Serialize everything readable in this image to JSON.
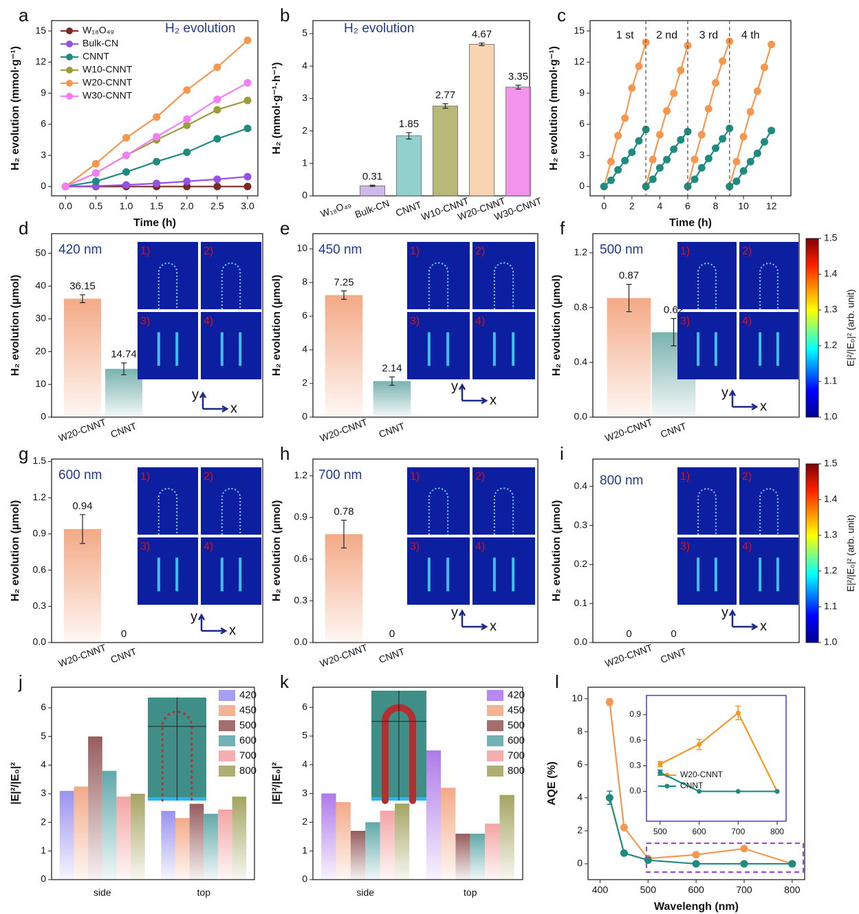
{
  "chart_data": [
    {
      "label": "a",
      "type": "line",
      "title": "H₂ evolution",
      "x": [
        0,
        0.5,
        1,
        1.5,
        2,
        2.5,
        3
      ],
      "series": [
        {
          "name": "W₁₈O₄₉",
          "color": "#7a2a25",
          "values": [
            0,
            0,
            0,
            0,
            0,
            0,
            0
          ]
        },
        {
          "name": "Bulk-CN",
          "color": "#9550e6",
          "values": [
            0,
            0.05,
            0.15,
            0.3,
            0.5,
            0.7,
            0.95
          ]
        },
        {
          "name": "CNNT",
          "color": "#1e8a80",
          "values": [
            0,
            0.5,
            1.4,
            2.4,
            3.3,
            4.6,
            5.6
          ]
        },
        {
          "name": "W10-CNNT",
          "color": "#9c9c3c",
          "values": [
            0,
            1.3,
            3.0,
            4.5,
            5.9,
            7.4,
            8.3
          ]
        },
        {
          "name": "W20-CNNT",
          "color": "#f5974f",
          "values": [
            0,
            2.2,
            4.7,
            6.7,
            9.3,
            11.5,
            14.1
          ]
        },
        {
          "name": "W30-CNNT",
          "color": "#f47cf4",
          "values": [
            0,
            1.3,
            3.0,
            4.8,
            6.5,
            8.4,
            10.0
          ]
        }
      ],
      "xlim": [
        -0.23,
        3.17
      ],
      "xticks": [
        {
          "value": 0,
          "label": "0.0"
        },
        0.5,
        {
          "value": 1,
          "label": "1.0"
        },
        1.5,
        {
          "value": 2,
          "label": "2.0"
        },
        2.5,
        {
          "value": 3,
          "label": "3.0"
        }
      ],
      "ylim": [
        -0.9,
        16
      ],
      "yticks": [
        0,
        3,
        6,
        9,
        12,
        15
      ],
      "xlabel": "Time (h)",
      "ylabel": "H₂ evolution (mmol·g⁻¹)",
      "legend": "upper left"
    },
    {
      "label": "b",
      "type": "bar",
      "title": "H₂ evolution",
      "categories": [
        "W₁₈O₄₉",
        "Bulk-CN",
        "CNNT",
        "W10-CNNT",
        "W20-CNNT",
        "W30-CNNT"
      ],
      "values": [
        0,
        0.31,
        1.85,
        2.77,
        4.67,
        3.35
      ],
      "errors": [
        0,
        0.02,
        0.1,
        0.07,
        0.04,
        0.06
      ],
      "value_labels": [
        null,
        "0.31",
        "1.85",
        "2.77",
        "4.67",
        "3.35"
      ],
      "colors": [
        "#b48ad8",
        "#c3a6e6",
        "#76c4c0",
        "#a6a656",
        "#f6c9a0",
        "#f07ae8"
      ],
      "ylim": [
        0,
        5.4
      ],
      "yticks": [
        0,
        1,
        2,
        3,
        4,
        5
      ],
      "ylabel": "H₂ (mmol·g⁻¹·h⁻¹)"
    },
    {
      "label": "c",
      "type": "line",
      "x": [
        0,
        0.5,
        1,
        1.5,
        2,
        2.5,
        3,
        3,
        3.5,
        4,
        4.5,
        5,
        5.5,
        6,
        6,
        6.5,
        7,
        7.5,
        8,
        8.5,
        9,
        9,
        9.5,
        10,
        10.5,
        11,
        11.5,
        12
      ],
      "series": [
        {
          "color": "#f5974f",
          "values": [
            0,
            2.4,
            4.9,
            6.6,
            9.5,
            11.6,
            13.9,
            0,
            2.6,
            5.0,
            7.3,
            9.0,
            11.2,
            13.6,
            0,
            2.6,
            5.0,
            7.5,
            10.0,
            12.1,
            14.0,
            0,
            2.4,
            4.8,
            7.2,
            9.2,
            11.5,
            13.7
          ]
        },
        {
          "color": "#1e8a80",
          "values": [
            0,
            0.6,
            1.6,
            2.5,
            3.3,
            4.4,
            5.5,
            0,
            0.7,
            1.8,
            2.6,
            3.6,
            4.5,
            5.3,
            0,
            0.7,
            1.8,
            2.7,
            3.7,
            4.6,
            5.6,
            0,
            0.5,
            1.5,
            2.4,
            3.2,
            4.3,
            5.4
          ]
        }
      ],
      "cycle_labels": [
        "1 st",
        "2 nd",
        "3 rd",
        "4 th"
      ],
      "vlines": [
        3,
        6,
        9
      ],
      "xlim": [
        -1,
        13.4
      ],
      "xticks": [
        0,
        2,
        4,
        6,
        8,
        10,
        12
      ],
      "ylim": [
        -0.9,
        16
      ],
      "yticks": [
        0,
        3,
        6,
        9,
        12,
        15
      ],
      "xlabel": "Time (h)",
      "ylabel": "H₂ evolution (mmol·g⁻¹)"
    },
    {
      "label": "d",
      "type": "bar",
      "title": "420 nm",
      "categories": [
        "W20-CNNT",
        "CNNT"
      ],
      "values": [
        36.15,
        14.74
      ],
      "errors": [
        1.2,
        1.8
      ],
      "colors": [
        "#f2a078",
        "#6aaaa5"
      ],
      "fade": true,
      "ylim": [
        0,
        56
      ],
      "yticks": [
        0,
        10,
        20,
        30,
        40,
        50
      ],
      "ylabel": "H₂ evolution (μmol)",
      "inset_labels": [
        "1)",
        "2)",
        "3)",
        "4)"
      ],
      "axis_labels": [
        "y",
        "x"
      ]
    },
    {
      "label": "e",
      "type": "bar",
      "title": "450 nm",
      "categories": [
        "W20-CNNT",
        "CNNT"
      ],
      "values": [
        7.25,
        2.14
      ],
      "errors": [
        0.25,
        0.25
      ],
      "colors": [
        "#f2a078",
        "#6aaaa5"
      ],
      "fade": true,
      "ylim": [
        0,
        10.9
      ],
      "yticks": [
        0,
        2,
        4,
        6,
        8,
        10
      ],
      "ylabel": "H₂ evolution (μmol)",
      "inset_labels": [
        "1)",
        "2)",
        "3)",
        "4)"
      ],
      "axis_labels": [
        "y",
        "x"
      ]
    },
    {
      "label": "f",
      "type": "bar",
      "title": "500 nm",
      "categories": [
        "W20-CNNT",
        "CNNT"
      ],
      "values": [
        0.87,
        0.62
      ],
      "errors": [
        0.1,
        0.1
      ],
      "colors": [
        "#f2a078",
        "#6aaaa5"
      ],
      "fade": true,
      "ylim": [
        0,
        1.34
      ],
      "yticks": [
        {
          "value": 0,
          "label": "0.0"
        },
        0.4,
        0.8,
        1.2
      ],
      "ylabel": "H₂ evolution (μmol)",
      "inset_labels": [
        "1)",
        "2)",
        "3)",
        "4)"
      ],
      "axis_labels": [
        "y",
        "x"
      ],
      "colorbar": {
        "clim": [
          1,
          1.5
        ],
        "ticks": [
          {
            "value": 1,
            "label": "1.0"
          },
          1.1,
          1.2,
          1.3,
          1.4,
          1.5
        ],
        "label": "E|²/|E₀|² (arb. unit)"
      }
    },
    {
      "label": "g",
      "type": "bar",
      "title": "600 nm",
      "categories": [
        "W20-CNNT",
        "CNNT"
      ],
      "values": [
        0.94,
        0
      ],
      "errors": [
        0.12,
        0
      ],
      "colors": [
        "#f2a078",
        "#6aaaa5"
      ],
      "fade": true,
      "ylim": [
        0,
        1.52
      ],
      "yticks": [
        {
          "value": 0,
          "label": "0.0"
        },
        0.3,
        0.6,
        0.9,
        1.2,
        1.5
      ],
      "ylabel": "H₂ evolution (μmol)",
      "inset_labels": [
        "1)",
        "2)",
        "3)",
        "4)"
      ],
      "axis_labels": [
        "y",
        "x"
      ]
    },
    {
      "label": "h",
      "type": "bar",
      "title": "700 nm",
      "categories": [
        "W20-CNNT",
        "CNNT"
      ],
      "values": [
        0.78,
        0
      ],
      "errors": [
        0.1,
        0
      ],
      "colors": [
        "#f2a078",
        "#6aaaa5"
      ],
      "fade": true,
      "ylim": [
        0,
        1.32
      ],
      "yticks": [
        {
          "value": 0,
          "label": "0.0"
        },
        0.3,
        0.6,
        0.9,
        1.2
      ],
      "ylabel": "H₂ evolution (μmol)",
      "inset_labels": [
        "1)",
        "2)",
        "3)",
        "4)"
      ],
      "axis_labels": [
        "y",
        "x"
      ]
    },
    {
      "label": "i",
      "type": "bar",
      "title": "800 nm",
      "categories": [
        "W20-CNNT",
        "CNNT"
      ],
      "values": [
        0,
        0
      ],
      "colors": [
        "#f2a078",
        "#6aaaa5"
      ],
      "fade": true,
      "ylim": [
        0,
        0.47
      ],
      "yticks": [
        {
          "value": 0,
          "label": "0.0"
        },
        0.1,
        0.2,
        0.3,
        0.4
      ],
      "ylabel": "H₂ evolution (μmol)",
      "inset_labels": [
        "1)",
        "2)",
        "3)",
        "4)"
      ],
      "axis_labels": [
        "y",
        "x"
      ],
      "colorbar": {
        "clim": [
          1,
          1.5
        ],
        "ticks": [
          {
            "value": 1,
            "label": "1.0"
          },
          1.1,
          1.2,
          1.3,
          1.4,
          1.5
        ],
        "label": "E|²/|E₀|² (arb. unit)"
      }
    },
    {
      "label": "j",
      "type": "bar",
      "categories": [
        "side",
        "top"
      ],
      "fade": true,
      "series": [
        {
          "name": "420",
          "color": "#8f86ee",
          "values": [
            3.1,
            2.4
          ]
        },
        {
          "name": "450",
          "color": "#f2a07a",
          "values": [
            3.25,
            2.15
          ]
        },
        {
          "name": "500",
          "color": "#8a4a4a",
          "values": [
            5.0,
            2.65
          ]
        },
        {
          "name": "600",
          "color": "#4f9fa0",
          "values": [
            3.8,
            2.3
          ]
        },
        {
          "name": "700",
          "color": "#f29a9a",
          "values": [
            2.9,
            2.45
          ]
        },
        {
          "name": "800",
          "color": "#9a9a50",
          "values": [
            3.0,
            2.9
          ]
        }
      ],
      "ylim": [
        0,
        6.72
      ],
      "yticks": [
        0,
        1,
        2,
        3,
        4,
        5,
        6
      ],
      "ylabel": "|E|²/|E₀|²",
      "legend": "upper right"
    },
    {
      "label": "k",
      "type": "bar",
      "categories": [
        "side",
        "top"
      ],
      "fade": true,
      "series": [
        {
          "name": "420",
          "color": "#a56be8",
          "values": [
            3.0,
            4.5
          ]
        },
        {
          "name": "450",
          "color": "#f2a07a",
          "values": [
            2.7,
            3.2
          ]
        },
        {
          "name": "500",
          "color": "#8a4a4a",
          "values": [
            1.7,
            1.6
          ]
        },
        {
          "name": "600",
          "color": "#4f9fa0",
          "values": [
            2.0,
            1.6
          ]
        },
        {
          "name": "700",
          "color": "#f29a9a",
          "values": [
            2.4,
            1.95
          ]
        },
        {
          "name": "800",
          "color": "#9a9a50",
          "values": [
            2.65,
            2.95
          ]
        }
      ],
      "ylim": [
        0,
        6.7
      ],
      "yticks": [
        0,
        1,
        2,
        3,
        4,
        5,
        6
      ],
      "ylabel": "|E|²/|E₀|²",
      "legend": "upper right"
    },
    {
      "label": "l",
      "type": "line",
      "x": [
        420,
        450,
        500,
        600,
        700,
        800
      ],
      "series": [
        {
          "name": "W20-CNNT",
          "color": "#f5974f",
          "values": [
            9.8,
            2.2,
            0.32,
            0.55,
            0.92,
            0
          ],
          "errors": [
            0.2,
            0,
            0.05,
            0.07,
            0.1,
            0
          ]
        },
        {
          "name": "CNNT",
          "color": "#1e8a80",
          "values": [
            4.0,
            0.65,
            0.22,
            0,
            0,
            0
          ],
          "errors": [
            0.4,
            0,
            0.04,
            0,
            0,
            0
          ]
        }
      ],
      "xlim": [
        375,
        826
      ],
      "xticks": [
        400,
        500,
        600,
        700,
        800
      ],
      "ylim": [
        -0.96,
        10.7
      ],
      "yticks": [
        0,
        2,
        4,
        6,
        8,
        10
      ],
      "xlabel": "Wavelengh (nm)",
      "ylabel": "AQE (%)"
    },
    {
      "type": "line",
      "x": [
        500,
        600,
        700,
        800
      ],
      "series": [
        {
          "name": "W20-CNNT",
          "color": "#f5971f",
          "values": [
            0.32,
            0.55,
            0.92,
            0
          ],
          "errors": [
            0.03,
            0.06,
            0.08,
            0
          ]
        },
        {
          "name": "CNNT",
          "color": "#1e8a80",
          "values": [
            0.22,
            0,
            0,
            0
          ],
          "errors": [
            0.03,
            0,
            0,
            0
          ]
        }
      ],
      "xlim": [
        465,
        823
      ],
      "xticks": [
        500,
        600,
        700,
        800
      ],
      "ylim": [
        -0.35,
        1.125
      ],
      "yticks": [
        {
          "value": 0,
          "label": "0.0"
        },
        0.3,
        0.6,
        0.9
      ],
      "legend": "center left"
    }
  ]
}
